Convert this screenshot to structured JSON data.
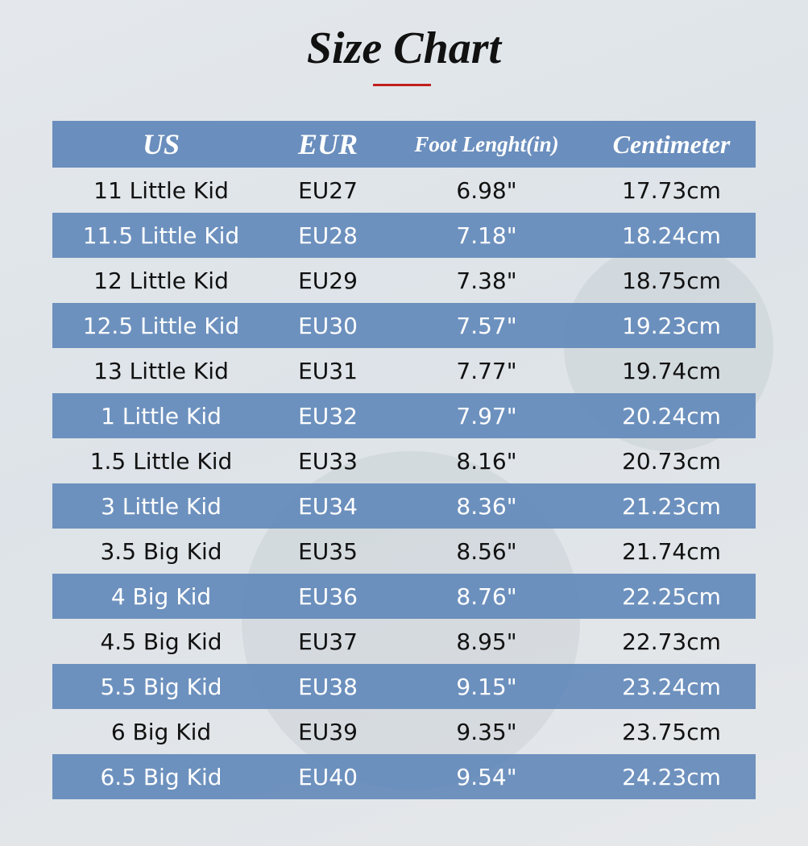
{
  "title": "Size Chart",
  "colors": {
    "header_bg": "#6087b9",
    "row_alt_bg": "#6087b9",
    "accent_rule": "#c0201e"
  },
  "table": {
    "headers": [
      "US",
      "EUR",
      "Foot Lenght(in)",
      "Centimeter"
    ],
    "rows": [
      [
        "11 Little Kid",
        "EU27",
        "6.98\"",
        "17.73cm"
      ],
      [
        "11.5 Little Kid",
        "EU28",
        "7.18\"",
        "18.24cm"
      ],
      [
        "12 Little Kid",
        "EU29",
        "7.38\"",
        "18.75cm"
      ],
      [
        "12.5 Little Kid",
        "EU30",
        "7.57\"",
        "19.23cm"
      ],
      [
        "13 Little Kid",
        "EU31",
        "7.77\"",
        "19.74cm"
      ],
      [
        "1 Little Kid",
        "EU32",
        "7.97\"",
        "20.24cm"
      ],
      [
        "1.5 Little Kid",
        "EU33",
        "8.16\"",
        "20.73cm"
      ],
      [
        "3 Little Kid",
        "EU34",
        "8.36\"",
        "21.23cm"
      ],
      [
        "3.5 Big Kid",
        "EU35",
        "8.56\"",
        "21.74cm"
      ],
      [
        "4 Big Kid",
        "EU36",
        "8.76\"",
        "22.25cm"
      ],
      [
        "4.5 Big Kid",
        "EU37",
        "8.95\"",
        "22.73cm"
      ],
      [
        "5.5 Big Kid",
        "EU38",
        "9.15\"",
        "23.24cm"
      ],
      [
        "6 Big Kid",
        "EU39",
        "9.35\"",
        "23.75cm"
      ],
      [
        "6.5 Big Kid",
        "EU40",
        "9.54\"",
        "24.23cm"
      ]
    ]
  }
}
